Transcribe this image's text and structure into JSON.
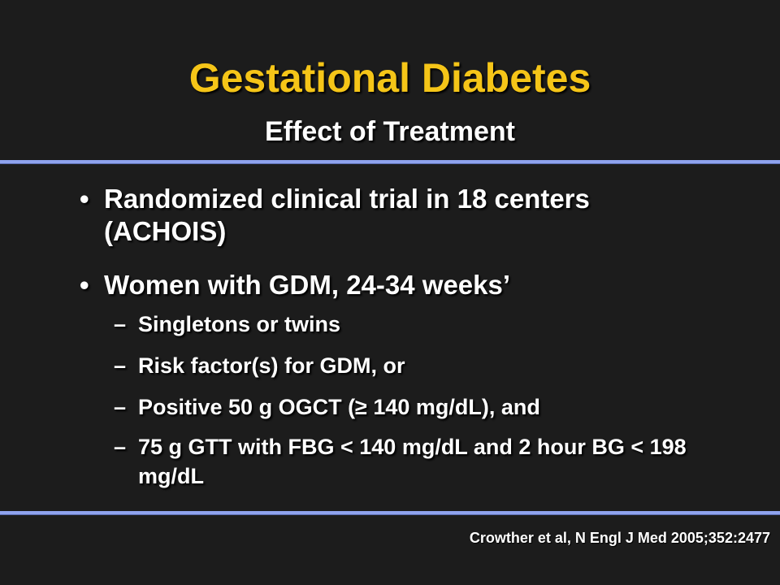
{
  "slide": {
    "title": "Gestational Diabetes",
    "subtitle": "Effect of Treatment",
    "bullets": [
      "Randomized clinical trial in 18 centers (ACHOIS)",
      "Women with GDM, 24-34 weeks’"
    ],
    "subbullets": [
      "Singletons or twins",
      "Risk factor(s) for GDM, or",
      "Positive 50 g OGCT (≥ 140 mg/dL), and",
      "75 g GTT with FBG < 140 mg/dL and 2 hour BG < 198 mg/dL"
    ],
    "bullet_marker": "•",
    "subbullet_marker": "–",
    "citation": "Crowther et al, N Engl J Med 2005;352:2477"
  },
  "colors": {
    "background": "#1c1c1c",
    "title": "#f5c518",
    "text": "#ffffff",
    "rule": "#8fa3ee"
  }
}
